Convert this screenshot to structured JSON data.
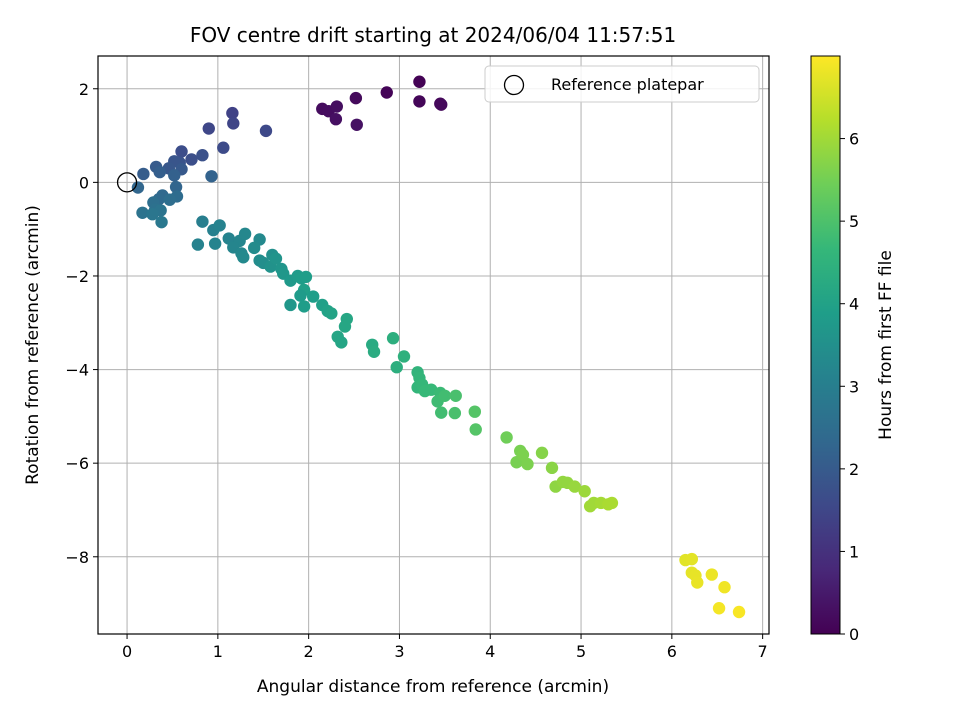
{
  "chart_data": {
    "type": "scatter",
    "title": "FOV centre drift starting at 2024/06/04 11:57:51",
    "xlabel": "Angular distance from reference (arcmin)",
    "ylabel": "Rotation from reference (arcmin)",
    "xlim": [
      -0.32,
      7.07
    ],
    "ylim": [
      -9.65,
      2.7
    ],
    "xticks": [
      0,
      1,
      2,
      3,
      4,
      5,
      6,
      7
    ],
    "yticks": [
      -8,
      -6,
      -4,
      -2,
      0,
      2
    ],
    "xtick_labels": [
      "0",
      "1",
      "2",
      "3",
      "4",
      "5",
      "6",
      "7"
    ],
    "ytick_labels": [
      "−8",
      "−6",
      "−4",
      "−2",
      "0",
      "2"
    ],
    "grid": true,
    "legend": {
      "placement": "top-right",
      "entries": [
        {
          "label": "Reference platepar",
          "marker": "open-circle"
        }
      ]
    },
    "reference_point": {
      "x": 0,
      "y": 0
    },
    "colorbar": {
      "label": "Hours from first FF file",
      "colormap": "viridis",
      "range": [
        0,
        7.0
      ],
      "ticks": [
        0,
        1,
        2,
        3,
        4,
        5,
        6
      ],
      "tick_labels": [
        "0",
        "1",
        "2",
        "3",
        "4",
        "5",
        "6"
      ]
    },
    "series": [
      {
        "x": [
          3.22,
          2.86,
          3.22,
          3.45,
          3.46,
          2.52,
          2.15,
          2.22,
          2.31,
          2.3,
          2.53,
          1.16,
          1.17,
          0.9,
          1.53,
          1.06,
          0.6,
          0.71,
          0.83,
          0.58,
          0.52,
          0.46,
          0.6,
          0.32,
          0.18,
          0.36,
          0.52,
          0.93,
          0.54,
          0.12,
          0.39,
          0.35,
          0.55,
          0.47,
          0.29,
          0.31,
          0.17,
          0.37,
          0.28,
          0.38,
          0.83,
          0.95,
          1.02,
          1.12,
          1.24,
          1.3,
          1.46,
          0.78,
          0.97,
          1.17,
          1.26,
          1.28,
          1.4,
          1.46,
          1.5,
          1.6,
          1.58,
          1.64,
          1.7,
          1.72,
          1.8,
          1.88,
          1.92,
          1.97,
          1.95,
          1.8,
          1.91,
          1.95,
          2.05,
          2.15,
          2.21,
          2.25,
          2.32,
          2.36,
          2.4,
          2.42,
          2.7,
          2.72,
          2.93,
          2.97,
          3.05,
          3.2,
          3.22,
          3.2,
          3.25,
          3.28,
          3.35,
          3.45,
          3.42,
          3.5,
          3.46,
          3.62,
          3.61,
          3.83,
          3.84,
          4.18,
          4.29,
          4.33,
          4.36,
          4.41,
          4.57,
          4.68,
          4.72,
          4.8,
          4.85,
          4.93,
          5.04,
          5.1,
          5.14,
          5.22,
          5.3,
          5.34,
          6.15,
          6.22,
          6.22,
          6.26,
          6.28,
          6.44,
          6.58,
          6.52,
          6.74
        ],
        "y": [
          2.15,
          1.92,
          1.73,
          1.68,
          1.66,
          1.8,
          1.57,
          1.52,
          1.62,
          1.35,
          1.23,
          1.48,
          1.26,
          1.15,
          1.1,
          0.74,
          0.66,
          0.49,
          0.58,
          0.42,
          0.45,
          0.3,
          0.28,
          0.33,
          0.18,
          0.22,
          0.15,
          0.13,
          -0.1,
          -0.11,
          -0.28,
          -0.36,
          -0.3,
          -0.37,
          -0.43,
          -0.58,
          -0.65,
          -0.6,
          -0.68,
          -0.85,
          -0.84,
          -1.02,
          -0.92,
          -1.2,
          -1.25,
          -1.1,
          -1.22,
          -1.33,
          -1.31,
          -1.39,
          -1.52,
          -1.6,
          -1.4,
          -1.67,
          -1.72,
          -1.55,
          -1.8,
          -1.63,
          -1.85,
          -1.95,
          -2.1,
          -2.0,
          -2.05,
          -2.02,
          -2.3,
          -2.62,
          -2.42,
          -2.65,
          -2.44,
          -2.62,
          -2.75,
          -2.8,
          -3.3,
          -3.42,
          -3.08,
          -2.92,
          -3.47,
          -3.62,
          -3.33,
          -3.95,
          -3.72,
          -4.06,
          -4.18,
          -4.38,
          -4.32,
          -4.46,
          -4.43,
          -4.5,
          -4.68,
          -4.56,
          -4.92,
          -4.56,
          -4.93,
          -4.9,
          -5.28,
          -5.45,
          -5.98,
          -5.74,
          -5.82,
          -6.02,
          -5.78,
          -6.1,
          -6.5,
          -6.4,
          -6.42,
          -6.5,
          -6.6,
          -6.92,
          -6.85,
          -6.85,
          -6.88,
          -6.85,
          -8.07,
          -8.05,
          -8.34,
          -8.4,
          -8.55,
          -8.38,
          -8.65,
          -9.1,
          -9.18
        ],
        "t": [
          0.03,
          0.06,
          0.09,
          0.12,
          0.15,
          0.18,
          0.21,
          0.24,
          0.27,
          0.3,
          0.33,
          1.4,
          1.45,
          1.5,
          1.55,
          1.6,
          1.65,
          1.7,
          1.75,
          1.8,
          1.85,
          1.9,
          1.95,
          2.0,
          2.05,
          2.1,
          2.15,
          2.2,
          2.25,
          2.3,
          2.35,
          2.4,
          2.45,
          2.5,
          2.55,
          2.6,
          2.65,
          2.7,
          2.75,
          2.8,
          3.0,
          3.05,
          3.1,
          3.15,
          3.2,
          3.25,
          3.3,
          3.1,
          3.15,
          3.2,
          3.25,
          3.3,
          3.35,
          3.4,
          3.45,
          3.5,
          3.55,
          3.6,
          3.65,
          3.7,
          3.75,
          3.8,
          3.85,
          3.9,
          3.95,
          3.7,
          3.8,
          3.85,
          3.9,
          3.95,
          4.0,
          4.05,
          4.1,
          4.1,
          4.15,
          4.15,
          4.25,
          4.3,
          4.4,
          4.4,
          4.45,
          4.55,
          4.6,
          4.6,
          4.65,
          4.7,
          4.7,
          4.75,
          4.8,
          4.85,
          4.85,
          4.95,
          4.95,
          5.1,
          5.1,
          5.45,
          5.55,
          5.55,
          5.6,
          5.6,
          5.7,
          5.75,
          5.8,
          5.85,
          5.85,
          5.9,
          5.95,
          6.0,
          6.0,
          6.05,
          6.1,
          6.1,
          6.7,
          6.72,
          6.74,
          6.76,
          6.78,
          6.82,
          6.86,
          6.9,
          6.95
        ]
      }
    ]
  }
}
